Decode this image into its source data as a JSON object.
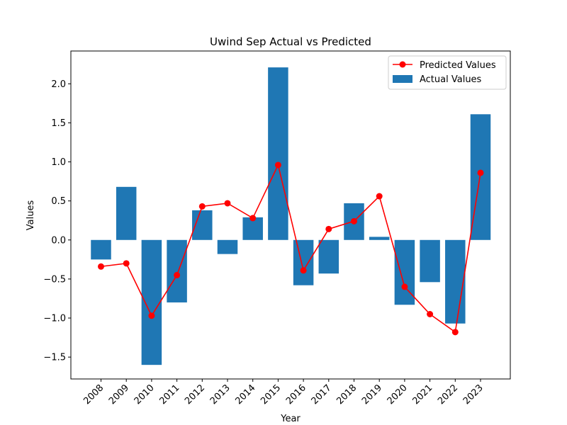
{
  "chart_data": {
    "type": "bar",
    "title": "Uwind Sep Actual vs Predicted",
    "xlabel": "Year",
    "ylabel": "Values",
    "ylim": [
      -1.78,
      2.42
    ],
    "yticks": [
      -1.5,
      -1.0,
      -0.5,
      0.0,
      0.5,
      1.0,
      1.5,
      2.0
    ],
    "ytick_labels": [
      "−1.5",
      "−1.0",
      "−0.5",
      "0.0",
      "0.5",
      "1.0",
      "1.5",
      "2.0"
    ],
    "categories": [
      "2008",
      "2009",
      "2010",
      "2011",
      "2012",
      "2013",
      "2014",
      "2015",
      "2016",
      "2017",
      "2018",
      "2019",
      "2020",
      "2021",
      "2022",
      "2023"
    ],
    "series": [
      {
        "name": "Actual Values",
        "kind": "bar",
        "color": "#1f77b4",
        "values": [
          -0.25,
          0.68,
          -1.6,
          -0.8,
          0.38,
          -0.18,
          0.29,
          2.21,
          -0.58,
          -0.43,
          0.47,
          0.04,
          -0.83,
          -0.54,
          -1.07,
          1.61
        ]
      },
      {
        "name": "Predicted Values",
        "kind": "line",
        "color": "#ff0000",
        "values": [
          -0.34,
          -0.3,
          -0.97,
          -0.45,
          0.43,
          0.47,
          0.28,
          0.96,
          -0.39,
          0.14,
          0.24,
          0.56,
          -0.6,
          -0.95,
          -1.18,
          0.86
        ]
      }
    ],
    "legend": {
      "position": "top-right",
      "entries": [
        "Predicted Values",
        "Actual Values"
      ]
    },
    "grid": false
  }
}
